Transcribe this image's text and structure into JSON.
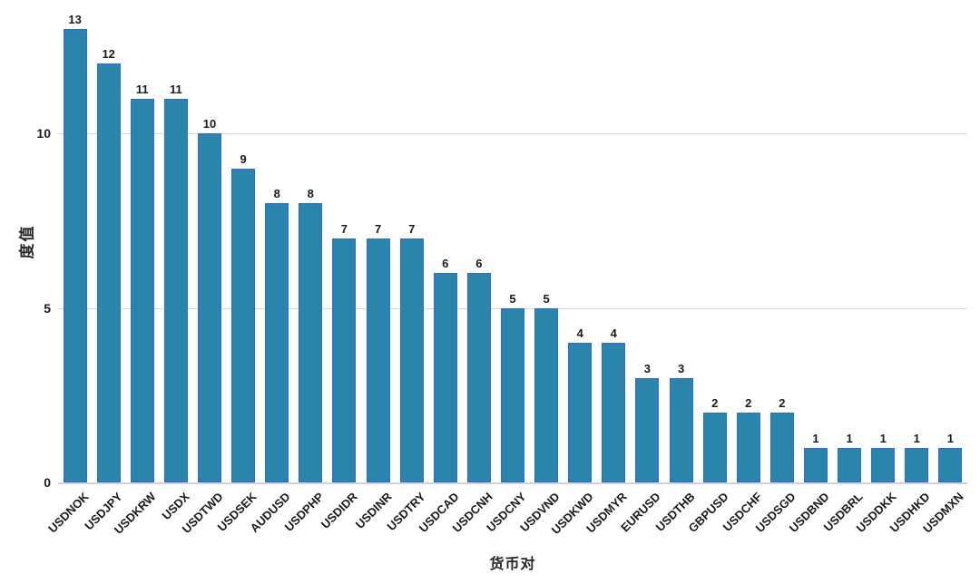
{
  "chart_data": {
    "type": "bar",
    "title": "",
    "xlabel": "货币对",
    "ylabel": "度值",
    "categories": [
      "USDNOK",
      "USDJPY",
      "USDKRW",
      "USDX",
      "USDTWD",
      "USDSEK",
      "AUDUSD",
      "USDPHP",
      "USDIDR",
      "USDINR",
      "USDTRY",
      "USDCAD",
      "USDCNH",
      "USDCNY",
      "USDVND",
      "USDKWD",
      "USDMYR",
      "EURUSD",
      "USDTHB",
      "GBPUSD",
      "USDCHF",
      "USDSGD",
      "USDBND",
      "USDBRL",
      "USDDKK",
      "USDHKD",
      "USDMXN"
    ],
    "values": [
      13,
      12,
      11,
      11,
      10,
      9,
      8,
      8,
      7,
      7,
      7,
      6,
      6,
      5,
      5,
      4,
      4,
      3,
      3,
      2,
      2,
      2,
      1,
      1,
      1,
      1,
      1
    ],
    "value_labels_shown": true,
    "yticks": [
      0,
      5,
      10
    ],
    "ylim": [
      0,
      13.8
    ],
    "grid": "horizontal",
    "legend": "none",
    "colors": {
      "bar_fill": "#2a85ad",
      "bar_edge": "#2e68d9",
      "grid_line": "#d9d9d9",
      "axis_line": "#d4d4d4",
      "tick_label": "#1a1a1a",
      "axis_title": "#262626",
      "background": "#ffffff"
    }
  }
}
